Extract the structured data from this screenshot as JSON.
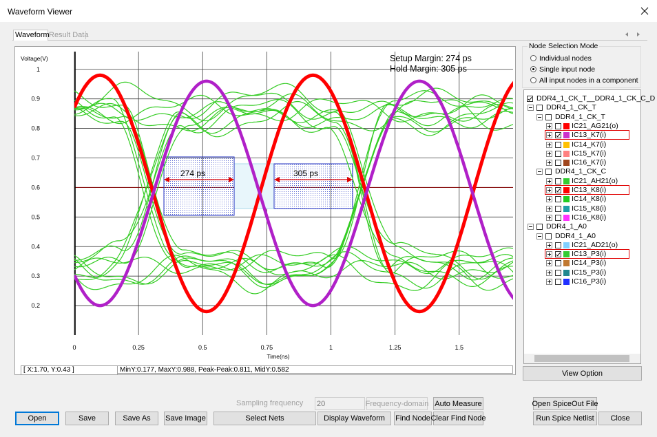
{
  "window": {
    "title": "Waveform Viewer"
  },
  "tabs": [
    "Waveform",
    "Result Data"
  ],
  "chart_data": {
    "type": "line",
    "y_axis_label": "Voltage(V)",
    "x_axis_label": "Time(ns)",
    "annotations": [
      "Setup Margin: 274 ps",
      "Hold Margin: 305 ps"
    ],
    "setup_label": "274 ps",
    "hold_label": "305 ps",
    "xlim": [
      0,
      1.71
    ],
    "ylim": [
      0.1,
      1.06
    ],
    "xticks": [
      0,
      0.25,
      0.5,
      0.75,
      1,
      1.25,
      1.5
    ],
    "yticks": [
      0.2,
      0.3,
      0.4,
      0.5,
      0.6,
      0.7,
      0.8,
      0.9,
      1
    ],
    "grid": true
  },
  "status_bar": {
    "cursor": "[ X:1.70, Y:0.43 ]",
    "stats": "MinY:0.177, MaxY:0.988, Peak-Peak:0.811, MidY:0.582"
  },
  "node_selection": {
    "title": "Node Selection Mode",
    "options": [
      "Individual nodes",
      "Single input node",
      "All input nodes in a component"
    ],
    "selected": 1
  },
  "tree": [
    {
      "label": "DDR4_1_CK_T__DDR4_1_CK_C_D",
      "level": 0,
      "checked": true
    },
    {
      "label": "DDR4_1_CK_T",
      "level": 1,
      "checked": false
    },
    {
      "label": "DDR4_1_CK_T",
      "level": 2,
      "checked": false
    },
    {
      "label": "IC21_AG21(o)",
      "level": 3,
      "color": "#ff0000",
      "checked": false
    },
    {
      "label": "IC13_K7(i)",
      "level": 3,
      "color": "#cc33cc",
      "checked": true,
      "highlighted": true
    },
    {
      "label": "IC14_K7(i)",
      "level": 3,
      "color": "#ffc000",
      "checked": false
    },
    {
      "label": "IC15_K7(i)",
      "level": 3,
      "color": "#ff8080",
      "checked": false
    },
    {
      "label": "IC16_K7(i)",
      "level": 3,
      "color": "#a0461e",
      "checked": false
    },
    {
      "label": "DDR4_1_CK_C",
      "level": 2,
      "checked": false
    },
    {
      "label": "IC21_AH21(o)",
      "level": 3,
      "color": "#33cc33",
      "checked": false
    },
    {
      "label": "IC13_K8(i)",
      "level": 3,
      "color": "#ff0000",
      "checked": true,
      "highlighted": true
    },
    {
      "label": "IC14_K8(i)",
      "level": 3,
      "color": "#22cc22",
      "checked": false
    },
    {
      "label": "IC15_K8(i)",
      "level": 3,
      "color": "#1fa0a8",
      "checked": false
    },
    {
      "label": "IC16_K8(i)",
      "level": 3,
      "color": "#ff33ff",
      "checked": false
    },
    {
      "label": "DDR4_1_A0",
      "level": 1,
      "checked": false
    },
    {
      "label": "DDR4_1_A0",
      "level": 2,
      "checked": false
    },
    {
      "label": "IC21_AD21(o)",
      "level": 3,
      "color": "#80d0ff",
      "checked": false
    },
    {
      "label": "IC13_P3(i)",
      "level": 3,
      "color": "#33cc33",
      "checked": true,
      "highlighted": true
    },
    {
      "label": "IC14_P3(i)",
      "level": 3,
      "color": "#c07830",
      "checked": false
    },
    {
      "label": "IC15_P3(i)",
      "level": 3,
      "color": "#208890",
      "checked": false
    },
    {
      "label": "IC16_P3(i)",
      "level": 3,
      "color": "#2030ff",
      "checked": false
    }
  ],
  "view_option": "View Option",
  "sampling": {
    "label": "Sampling frequency",
    "value": 20
  },
  "buttons": {
    "frequency_domain": "Frequency-domain",
    "auto_measure": "Auto Measure",
    "open_spiceout": "Open SpiceOut File",
    "open": "Open",
    "save": "Save",
    "save_as": "Save As",
    "save_image": "Save Image",
    "select_nets": "Select Nets",
    "display_waveform": "Display Waveform",
    "find_node": "Find Node",
    "clear_find_node": "Clear Find Node",
    "run_spice_netlist": "Run Spice Netlist",
    "close": "Close"
  }
}
